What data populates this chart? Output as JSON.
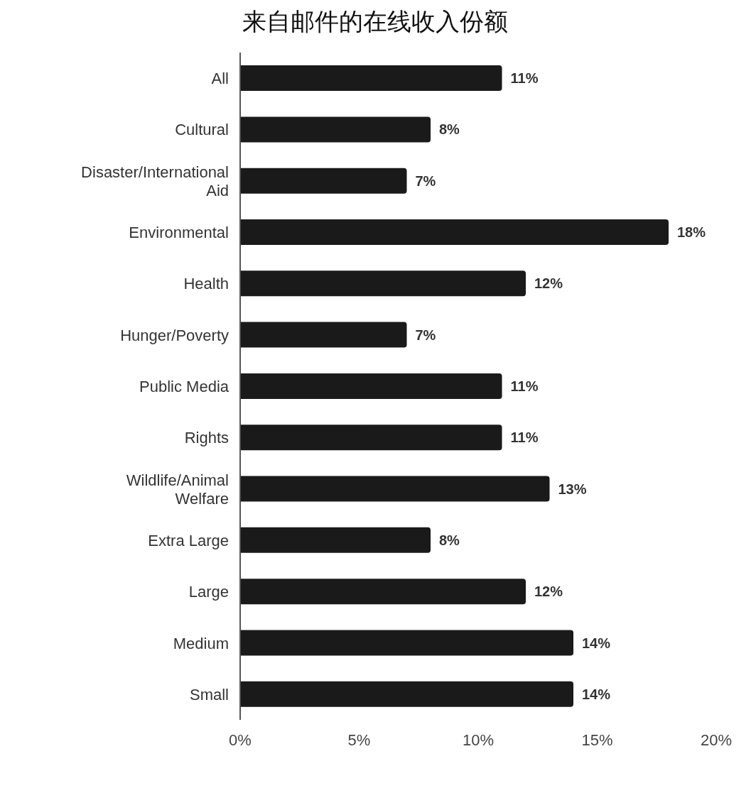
{
  "chart_data": {
    "type": "bar",
    "orientation": "horizontal",
    "title": "来自邮件的在线收入份额",
    "categories": [
      "All",
      "Cultural",
      "Disaster/International Aid",
      "Environmental",
      "Health",
      "Hunger/Poverty",
      "Public Media",
      "Rights",
      "Wildlife/Animal Welfare",
      "Extra Large",
      "Large",
      "Medium",
      "Small"
    ],
    "values": [
      11,
      8,
      7,
      18,
      12,
      7,
      11,
      11,
      13,
      8,
      12,
      14,
      14
    ],
    "value_labels": [
      "11%",
      "8%",
      "7%",
      "18%",
      "12%",
      "7%",
      "11%",
      "11%",
      "13%",
      "8%",
      "12%",
      "14%",
      "14%"
    ],
    "color": "#1a1a1a",
    "xlim": [
      0,
      20
    ],
    "xticks": [
      {
        "value": 0,
        "label": "0%"
      },
      {
        "value": 5,
        "label": "5%"
      },
      {
        "value": 10,
        "label": "10%"
      },
      {
        "value": 15,
        "label": "15%"
      },
      {
        "value": 20,
        "label": "20%"
      }
    ],
    "grid": false,
    "legend": false
  }
}
